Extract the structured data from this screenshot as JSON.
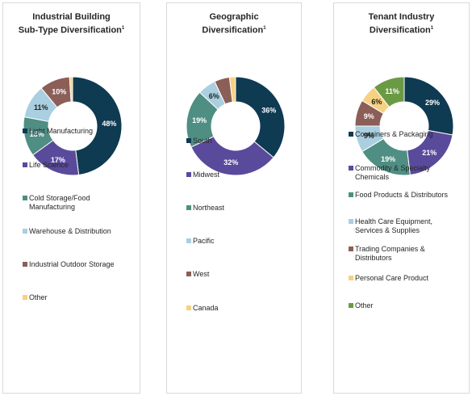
{
  "chart_data": [
    {
      "type": "pie",
      "title_lines": [
        "Industrial Building",
        "Sub-Type Diversification"
      ],
      "title_sup": "1",
      "categories": [
        "Light Manufacturing",
        "Life Science",
        "Cold Storage/Food Manufacturing",
        "Warehouse & Distribution",
        "Industrial Outdoor Storage",
        "Other"
      ],
      "legend_labels": [
        [
          "Light Manufacturing"
        ],
        [
          "Life Science"
        ],
        [
          "Cold Storage/Food",
          "Manufacturing"
        ],
        [
          "Warehouse & Distribution"
        ],
        [
          "Industrial Outdoor Storage"
        ],
        [
          "Other"
        ]
      ],
      "values": [
        48,
        17,
        13,
        11,
        10,
        1
      ],
      "data_labels": [
        "48%",
        "17%",
        "13%",
        "11%",
        "10%",
        ""
      ],
      "colors": [
        "#0e3a52",
        "#5a4a9c",
        "#4f8e83",
        "#a9cfe0",
        "#8c5e58",
        "#f7d183"
      ],
      "legend_placement": "bottom"
    },
    {
      "type": "pie",
      "title_lines": [
        "Geographic",
        "Diversification"
      ],
      "title_sup": "1",
      "categories": [
        "South",
        "Midwest",
        "Northeast",
        "Pacific",
        "West",
        "Canada"
      ],
      "legend_labels": [
        [
          "South"
        ],
        [
          "Midwest"
        ],
        [
          "Northeast"
        ],
        [
          "Pacific"
        ],
        [
          "West"
        ],
        [
          "Canada"
        ]
      ],
      "values": [
        36,
        32,
        19,
        6,
        5,
        2
      ],
      "data_labels": [
        "36%",
        "32%",
        "19%",
        "6%",
        "",
        ""
      ],
      "colors": [
        "#0e3a52",
        "#5a4a9c",
        "#4f8e83",
        "#a9cfe0",
        "#8c5e58",
        "#f7d183"
      ],
      "legend_placement": "bottom"
    },
    {
      "type": "pie",
      "title_lines": [
        "Tenant Industry",
        "Diversification"
      ],
      "title_sup": "1",
      "categories": [
        "Containers & Packaging",
        "Commodity & Specialty Chemicals",
        "Food Products & Distributors",
        "Health Care Equipment, Services & Supplies",
        "Trading Companies & Distributors",
        "Personal Care Product",
        "Other"
      ],
      "legend_labels": [
        [
          "Containers & Packaging"
        ],
        [
          "Commodity & Specialty",
          "Chemicals"
        ],
        [
          "Food Products & Distributors"
        ],
        [
          "Health Care Equipment,",
          "Services & Supplies"
        ],
        [
          "Trading Companies &",
          "Distributors"
        ],
        [
          "Personal Care Product"
        ],
        [
          "Other"
        ]
      ],
      "values": [
        29,
        21,
        19,
        9,
        9,
        6,
        11
      ],
      "data_labels": [
        "29%",
        "21%",
        "19%",
        "9%",
        "9%",
        "6%",
        "11%"
      ],
      "colors": [
        "#0e3a52",
        "#5a4a9c",
        "#4f8e83",
        "#a9cfe0",
        "#8c5e58",
        "#f7d183",
        "#6b9a45"
      ],
      "legend_placement": "bottom"
    }
  ]
}
